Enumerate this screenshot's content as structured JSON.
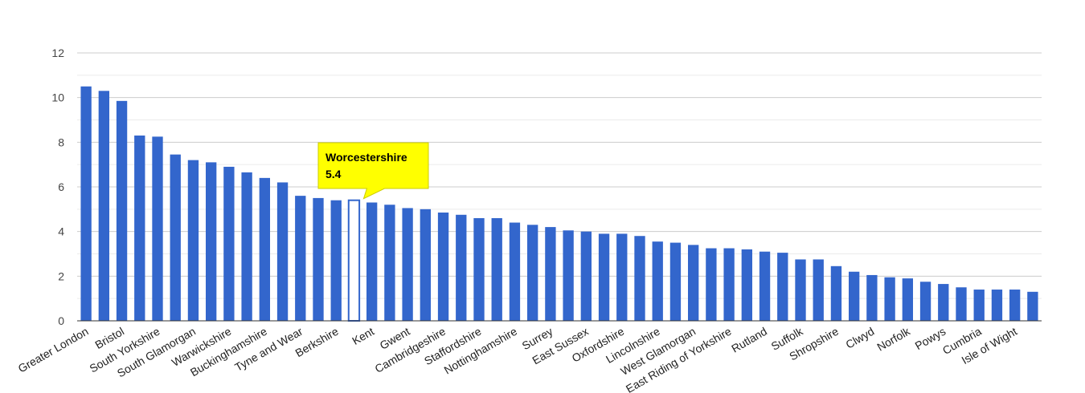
{
  "chart_data": {
    "type": "bar",
    "title": "",
    "xlabel": "",
    "ylabel": "",
    "ylim": [
      0,
      12
    ],
    "yticks": [
      0,
      2,
      4,
      6,
      8,
      10,
      12
    ],
    "grid": true,
    "bar_color": "#3366cc",
    "highlight_color": "#ffff00",
    "categories": [
      "Greater London",
      "",
      "Bristol",
      "",
      "South Yorkshire",
      "",
      "South Glamorgan",
      "",
      "Warwickshire",
      "",
      "Buckinghamshire",
      "",
      "Tyne and Wear",
      "",
      "Berkshire",
      "",
      "Kent",
      "",
      "Gwent",
      "",
      "Cambridgeshire",
      "",
      "Staffordshire",
      "",
      "Nottinghamshire",
      "",
      "Surrey",
      "",
      "East Sussex",
      "",
      "Oxfordshire",
      "",
      "Lincolnshire",
      "",
      "West Glamorgan",
      "",
      "East Riding of Yorkshire",
      "",
      "Rutland",
      "",
      "Suffolk",
      "",
      "Shropshire",
      "",
      "Clwyd",
      "",
      "Norfolk",
      "",
      "Powys",
      "",
      "Cumbria",
      "",
      "Isle of Wight",
      ""
    ],
    "values": [
      10.5,
      10.3,
      9.85,
      8.3,
      8.25,
      7.45,
      7.2,
      7.1,
      6.9,
      6.65,
      6.4,
      6.2,
      5.6,
      5.5,
      5.4,
      5.4,
      5.3,
      5.2,
      5.05,
      5.0,
      4.85,
      4.75,
      4.6,
      4.6,
      4.4,
      4.3,
      4.2,
      4.05,
      4.0,
      3.9,
      3.9,
      3.8,
      3.55,
      3.5,
      3.4,
      3.25,
      3.25,
      3.2,
      3.1,
      3.05,
      2.75,
      2.75,
      2.45,
      2.2,
      2.05,
      1.95,
      1.9,
      1.75,
      1.65,
      1.5,
      1.4,
      1.4,
      1.4,
      1.3
    ],
    "highlight_index": 15,
    "tooltip": {
      "name": "Worcestershire",
      "value": "5.4"
    }
  }
}
